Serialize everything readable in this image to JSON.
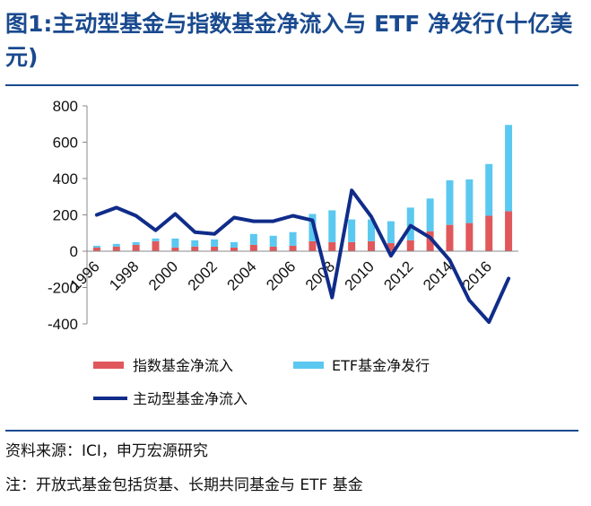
{
  "header": {
    "title": "图1:主动型基金与指数基金净流入与 ETF 净发行(十亿美元)"
  },
  "footer": {
    "source": "资料来源：ICI，申万宏源研究",
    "note": "注：开放式基金包括货基、长期共同基金与 ETF 基金"
  },
  "colors": {
    "index_bar": "#e0585b",
    "etf_bar": "#5bc8f0",
    "active_line": "#102c8a",
    "title": "#1a4a8f"
  },
  "chart_data": {
    "type": "bar",
    "title": "主动型基金与指数基金净流入与 ETF 净发行(十亿美元)",
    "xlabel": "",
    "ylabel": "",
    "ylim": [
      -400,
      800
    ],
    "yticks": [
      800,
      600,
      400,
      200,
      0,
      -200,
      -400
    ],
    "categories": [
      1996,
      1997,
      1998,
      1999,
      2000,
      2001,
      2002,
      2003,
      2004,
      2005,
      2006,
      2007,
      2008,
      2009,
      2010,
      2011,
      2012,
      2013,
      2014,
      2015,
      2016,
      2017
    ],
    "xtick_labels": [
      "1996",
      "1998",
      "2000",
      "2002",
      "2004",
      "2006",
      "2008",
      "2010",
      "2012",
      "2014",
      "2016"
    ],
    "stacked": true,
    "grid": false,
    "legend_position": "bottom",
    "series": [
      {
        "name": "指数基金净流入",
        "kind": "bar",
        "values": [
          20,
          25,
          35,
          55,
          20,
          25,
          25,
          20,
          35,
          25,
          30,
          55,
          50,
          50,
          55,
          45,
          60,
          110,
          145,
          155,
          195,
          220
        ]
      },
      {
        "name": "ETF基金净发行",
        "kind": "bar",
        "values": [
          10,
          15,
          15,
          15,
          50,
          35,
          40,
          30,
          60,
          60,
          75,
          150,
          175,
          125,
          120,
          120,
          180,
          180,
          245,
          240,
          285,
          475
        ]
      },
      {
        "name": "主动型基金净流入",
        "kind": "line",
        "values": [
          200,
          240,
          195,
          115,
          205,
          105,
          95,
          185,
          165,
          165,
          195,
          170,
          -255,
          335,
          190,
          -25,
          140,
          75,
          -50,
          -270,
          -390,
          -150
        ]
      }
    ]
  }
}
